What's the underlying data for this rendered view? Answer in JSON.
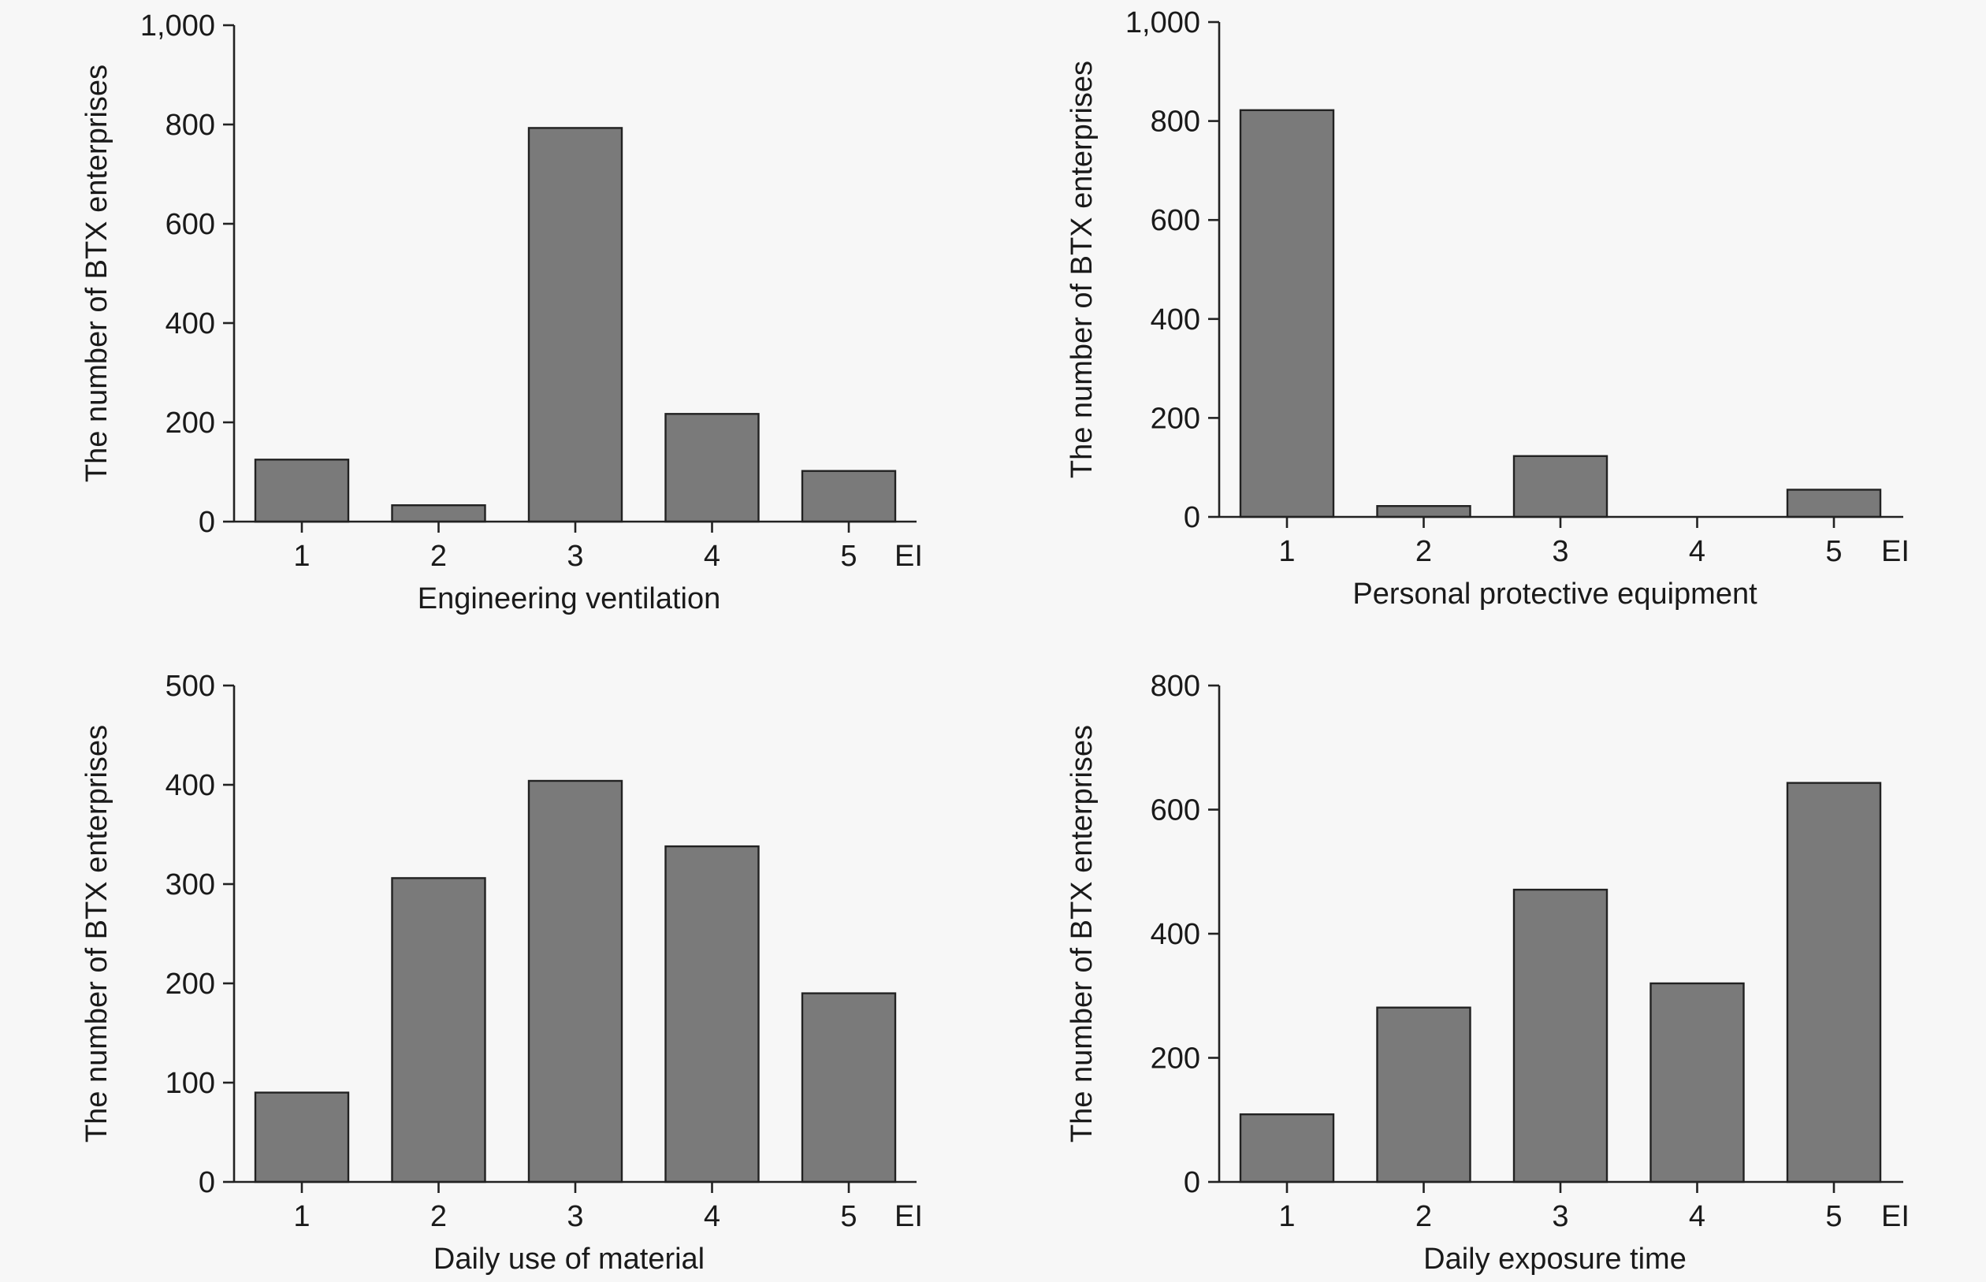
{
  "figure": {
    "panels": 4,
    "colors": {
      "bar_fill": "#7a7a7a",
      "bar_stroke": "#222222",
      "axis": "#222222",
      "background": "#f7f7f7"
    }
  },
  "chart_data": [
    {
      "type": "bar",
      "panel": "top-left",
      "categories": [
        "1",
        "2",
        "3",
        "4",
        "5"
      ],
      "x_end_label": "EI",
      "values": [
        125,
        33,
        793,
        217,
        102
      ],
      "xlabel": "Engineering ventilation",
      "ylabel": "The number of BTX enterprises",
      "ylim": [
        0,
        1000
      ],
      "yticks": [
        0,
        200,
        400,
        600,
        800,
        1000
      ],
      "ytick_labels": [
        "0",
        "200",
        "400",
        "600",
        "800",
        "1,000"
      ],
      "grid": false,
      "legend": "none"
    },
    {
      "type": "bar",
      "panel": "top-right",
      "categories": [
        "1",
        "2",
        "3",
        "4",
        "5"
      ],
      "x_end_label": "EI",
      "values": [
        822,
        22,
        123,
        0,
        55
      ],
      "xlabel": "Personal protective equipment",
      "ylabel": "The number of BTX enterprises",
      "ylim": [
        0,
        1000
      ],
      "yticks": [
        0,
        200,
        400,
        600,
        800,
        1000
      ],
      "ytick_labels": [
        "0",
        "200",
        "400",
        "600",
        "800",
        "1,000"
      ],
      "grid": false,
      "legend": "none"
    },
    {
      "type": "bar",
      "panel": "bottom-left",
      "categories": [
        "1",
        "2",
        "3",
        "4",
        "5"
      ],
      "x_end_label": "EI",
      "values": [
        90,
        306,
        404,
        338,
        190
      ],
      "xlabel": "Daily use of material",
      "ylabel": "The number of BTX enterprises",
      "ylim": [
        0,
        500
      ],
      "yticks": [
        0,
        100,
        200,
        300,
        400,
        500
      ],
      "ytick_labels": [
        "0",
        "100",
        "200",
        "300",
        "400",
        "500"
      ],
      "grid": false,
      "legend": "none"
    },
    {
      "type": "bar",
      "panel": "bottom-right",
      "categories": [
        "1",
        "2",
        "3",
        "4",
        "5"
      ],
      "x_end_label": "EI",
      "values": [
        109,
        281,
        471,
        320,
        643
      ],
      "xlabel": "Daily exposure time",
      "ylabel": "The number of BTX enterprises",
      "ylim": [
        0,
        800
      ],
      "yticks": [
        0,
        200,
        400,
        600,
        800
      ],
      "ytick_labels": [
        "0",
        "200",
        "400",
        "600",
        "800"
      ],
      "grid": false,
      "legend": "none"
    }
  ]
}
